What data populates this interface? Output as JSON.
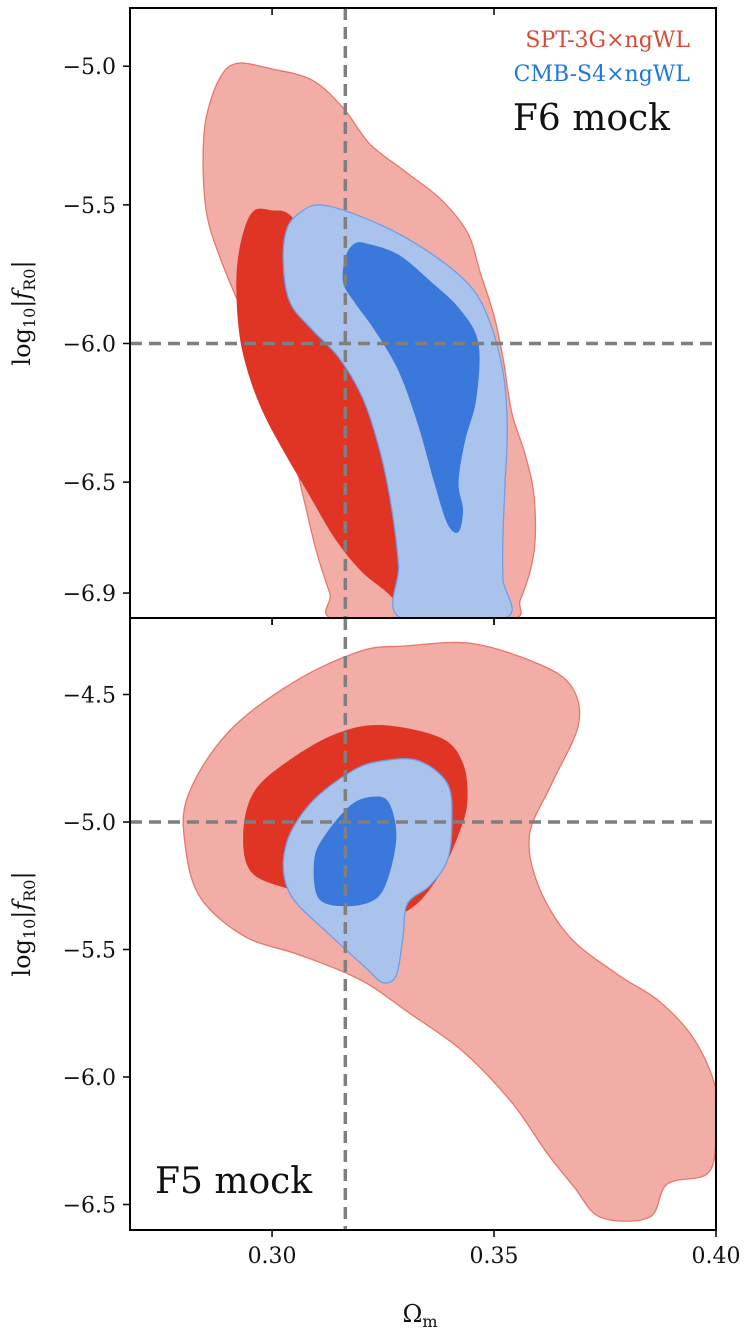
{
  "chart_data": [
    {
      "type": "contour",
      "panel": "F6 mock",
      "panel_label": "F6 mock",
      "xlim": [
        0.268,
        0.4
      ],
      "ylim": [
        -6.99,
        -4.79
      ],
      "yticks": [
        -6.9,
        -6.5,
        -6.0,
        -5.5,
        -5.0
      ],
      "ytick_labels": [
        "−6.9",
        "−6.5",
        "−6.0",
        "−5.5",
        "−5.0"
      ],
      "ylabel": "log10|fR0|",
      "xlabel": "",
      "reference_lines": {
        "x": 0.3165,
        "y": -6.0
      },
      "legend": {
        "placement": "top-right",
        "entries": [
          {
            "label": "SPT-3G×ngWL",
            "color": "#d64a3a"
          },
          {
            "label": "CMB-S4×ngWL",
            "color": "#1f77e0"
          }
        ]
      },
      "series": [
        {
          "name": "SPT-3G×ngWL",
          "outer_color": "#f2aea6",
          "inner_color": "#e03525",
          "outer": [
            [
              0.3,
              -5.01
            ],
            [
              0.292,
              -4.99
            ],
            [
              0.288,
              -5.05
            ],
            [
              0.285,
              -5.2
            ],
            [
              0.2845,
              -5.38
            ],
            [
              0.2855,
              -5.55
            ],
            [
              0.289,
              -5.72
            ],
            [
              0.295,
              -5.95
            ],
            [
              0.3,
              -6.15
            ],
            [
              0.304,
              -6.35
            ],
            [
              0.307,
              -6.55
            ],
            [
              0.31,
              -6.75
            ],
            [
              0.313,
              -6.9
            ],
            [
              0.3155,
              -7.0
            ],
            [
              0.352,
              -7.0
            ],
            [
              0.356,
              -6.92
            ],
            [
              0.359,
              -6.75
            ],
            [
              0.359,
              -6.55
            ],
            [
              0.357,
              -6.4
            ],
            [
              0.354,
              -6.25
            ],
            [
              0.352,
              -6.05
            ],
            [
              0.35,
              -5.9
            ],
            [
              0.347,
              -5.75
            ],
            [
              0.344,
              -5.6
            ],
            [
              0.338,
              -5.48
            ],
            [
              0.33,
              -5.38
            ],
            [
              0.322,
              -5.28
            ],
            [
              0.316,
              -5.15
            ],
            [
              0.309,
              -5.05
            ]
          ],
          "inner": [
            [
              0.3,
              -5.52
            ],
            [
              0.296,
              -5.52
            ],
            [
              0.2935,
              -5.6
            ],
            [
              0.292,
              -5.75
            ],
            [
              0.2925,
              -5.95
            ],
            [
              0.2945,
              -6.1
            ],
            [
              0.298,
              -6.25
            ],
            [
              0.303,
              -6.4
            ],
            [
              0.3085,
              -6.55
            ],
            [
              0.314,
              -6.7
            ],
            [
              0.32,
              -6.82
            ],
            [
              0.326,
              -6.9
            ],
            [
              0.3315,
              -6.99
            ],
            [
              0.334,
              -6.99
            ],
            [
              0.333,
              -6.8
            ],
            [
              0.3315,
              -6.6
            ],
            [
              0.3295,
              -6.4
            ],
            [
              0.3265,
              -6.2
            ],
            [
              0.3215,
              -6.05
            ],
            [
              0.316,
              -5.9
            ],
            [
              0.3115,
              -5.75
            ],
            [
              0.307,
              -5.6
            ],
            [
              0.3035,
              -5.53
            ]
          ]
        },
        {
          "name": "CMB-S4×ngWL",
          "outer_color": "#a9c3ec",
          "inner_color": "#2a6ed8",
          "outer": [
            [
              0.307,
              -5.52
            ],
            [
              0.3035,
              -5.58
            ],
            [
              0.3025,
              -5.7
            ],
            [
              0.304,
              -5.85
            ],
            [
              0.309,
              -5.95
            ],
            [
              0.315,
              -6.05
            ],
            [
              0.3205,
              -6.2
            ],
            [
              0.3245,
              -6.4
            ],
            [
              0.327,
              -6.6
            ],
            [
              0.3285,
              -6.8
            ],
            [
              0.329,
              -6.99
            ],
            [
              0.3525,
              -6.99
            ],
            [
              0.352,
              -6.85
            ],
            [
              0.352,
              -6.7
            ],
            [
              0.3525,
              -6.5
            ],
            [
              0.353,
              -6.3
            ],
            [
              0.352,
              -6.1
            ],
            [
              0.349,
              -5.92
            ],
            [
              0.345,
              -5.8
            ],
            [
              0.338,
              -5.7
            ],
            [
              0.328,
              -5.6
            ],
            [
              0.318,
              -5.53
            ],
            [
              0.311,
              -5.5
            ]
          ],
          "inner": [
            [
              0.3185,
              -5.64
            ],
            [
              0.3165,
              -5.69
            ],
            [
              0.316,
              -5.78
            ],
            [
              0.3185,
              -5.85
            ],
            [
              0.323,
              -5.95
            ],
            [
              0.3285,
              -6.1
            ],
            [
              0.333,
              -6.3
            ],
            [
              0.3365,
              -6.5
            ],
            [
              0.3395,
              -6.65
            ],
            [
              0.342,
              -6.68
            ],
            [
              0.343,
              -6.6
            ],
            [
              0.342,
              -6.5
            ],
            [
              0.3435,
              -6.35
            ],
            [
              0.346,
              -6.2
            ],
            [
              0.3465,
              -6.0
            ],
            [
              0.3425,
              -5.88
            ],
            [
              0.336,
              -5.78
            ],
            [
              0.3285,
              -5.68
            ],
            [
              0.3215,
              -5.64
            ]
          ]
        }
      ]
    },
    {
      "type": "contour",
      "panel": "F5 mock",
      "panel_label": "F5 mock",
      "xlim": [
        0.268,
        0.4
      ],
      "ylim": [
        -6.6,
        -4.2
      ],
      "xticks": [
        0.3,
        0.35,
        0.4
      ],
      "xtick_labels": [
        "0.30",
        "0.35",
        "0.40"
      ],
      "yticks": [
        -6.5,
        -6.0,
        -5.5,
        -5.0,
        -4.5
      ],
      "ytick_labels": [
        "−6.5",
        "−6.0",
        "−5.5",
        "−5.0",
        "−4.5"
      ],
      "ylabel": "log10|fR0|",
      "xlabel": "Ωm",
      "reference_lines": {
        "x": 0.3165,
        "y": -5.0
      },
      "series": [
        {
          "name": "SPT-3G×ngWL",
          "outer_color": "#f2aea6",
          "inner_color": "#e03525",
          "outer": [
            [
              0.33,
              -4.31
            ],
            [
              0.32,
              -4.33
            ],
            [
              0.305,
              -4.45
            ],
            [
              0.29,
              -4.65
            ],
            [
              0.281,
              -4.9
            ],
            [
              0.2805,
              -5.1
            ],
            [
              0.284,
              -5.3
            ],
            [
              0.294,
              -5.45
            ],
            [
              0.306,
              -5.52
            ],
            [
              0.32,
              -5.62
            ],
            [
              0.331,
              -5.75
            ],
            [
              0.343,
              -5.9
            ],
            [
              0.354,
              -6.1
            ],
            [
              0.362,
              -6.3
            ],
            [
              0.368,
              -6.43
            ],
            [
              0.374,
              -6.55
            ],
            [
              0.385,
              -6.55
            ],
            [
              0.389,
              -6.42
            ],
            [
              0.398,
              -6.38
            ],
            [
              0.4,
              -6.25
            ],
            [
              0.4,
              -6.05
            ],
            [
              0.395,
              -5.85
            ],
            [
              0.387,
              -5.7
            ],
            [
              0.378,
              -5.6
            ],
            [
              0.367,
              -5.45
            ],
            [
              0.36,
              -5.25
            ],
            [
              0.358,
              -5.05
            ],
            [
              0.363,
              -4.85
            ],
            [
              0.369,
              -4.62
            ],
            [
              0.3675,
              -4.47
            ],
            [
              0.36,
              -4.38
            ],
            [
              0.345,
              -4.3
            ]
          ]
        },
        {
          "name": "SPT-3G×ngWL (inner)",
          "inner_color": "#e03525",
          "outer": [
            [
              0.325,
              -4.62
            ],
            [
              0.315,
              -4.65
            ],
            [
              0.3045,
              -4.75
            ],
            [
              0.296,
              -4.88
            ],
            [
              0.2935,
              -5.05
            ],
            [
              0.2955,
              -5.2
            ],
            [
              0.305,
              -5.27
            ],
            [
              0.3155,
              -5.33
            ],
            [
              0.3245,
              -5.38
            ],
            [
              0.332,
              -5.33
            ],
            [
              0.338,
              -5.2
            ],
            [
              0.342,
              -5.05
            ],
            [
              0.344,
              -4.92
            ],
            [
              0.343,
              -4.77
            ],
            [
              0.338,
              -4.67
            ]
          ]
        },
        {
          "name": "CMB-S4×ngWL",
          "outer_color": "#a9c3ec",
          "inner_color": "#2a6ed8",
          "outer": [
            [
              0.325,
              -4.76
            ],
            [
              0.318,
              -4.8
            ],
            [
              0.3085,
              -4.93
            ],
            [
              0.303,
              -5.1
            ],
            [
              0.304,
              -5.28
            ],
            [
              0.3135,
              -5.45
            ],
            [
              0.321,
              -5.57
            ],
            [
              0.325,
              -5.63
            ],
            [
              0.328,
              -5.6
            ],
            [
              0.3295,
              -5.45
            ],
            [
              0.3305,
              -5.32
            ],
            [
              0.3355,
              -5.25
            ],
            [
              0.3395,
              -5.15
            ],
            [
              0.3405,
              -5.0
            ],
            [
              0.3395,
              -4.85
            ],
            [
              0.333,
              -4.76
            ]
          ],
          "inner": [
            [
              0.3235,
              -4.9
            ],
            [
              0.318,
              -4.93
            ],
            [
              0.312,
              -5.05
            ],
            [
              0.3095,
              -5.15
            ],
            [
              0.3105,
              -5.3
            ],
            [
              0.317,
              -5.33
            ],
            [
              0.3235,
              -5.3
            ],
            [
              0.3265,
              -5.2
            ],
            [
              0.328,
              -5.05
            ],
            [
              0.3265,
              -4.93
            ]
          ]
        }
      ]
    }
  ]
}
